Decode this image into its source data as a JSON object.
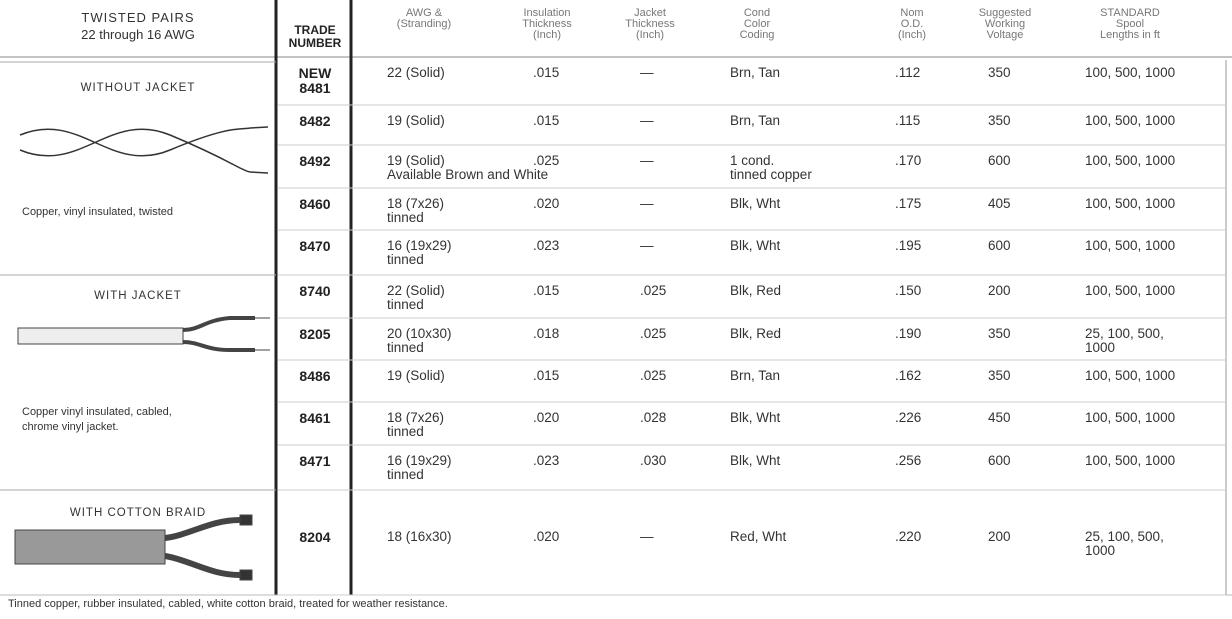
{
  "header": {
    "title": "TWISTED PAIRS",
    "subtitle": "22 through 16 AWG"
  },
  "columns": [
    "TRADE\nNUMBER",
    "AWG &\n(Stranding)",
    "Insulation\nThickness\n(Inch)",
    "Jacket\nThickness\n(Inch)",
    "Cond\nColor\nCoding",
    "Nom\nO.D.\n(Inch)",
    "Suggested\nWorking\nVoltage",
    "STANDARD\nSpool\nLengths in ft"
  ],
  "sections": [
    {
      "title": "WITHOUT JACKET",
      "caption": "Copper, vinyl insulated, twisted"
    },
    {
      "title": "WITH JACKET",
      "caption": "Copper vinyl insulated, cabled,\nchrome vinyl jacket."
    },
    {
      "title": "WITH COTTON BRAID",
      "caption": "Tinned copper, rubber insulated, cabled, white cotton braid, treated for weather resistance."
    }
  ],
  "rows": [
    [
      "NEW\n8481",
      "22 (Solid)",
      ".015",
      "—",
      "Brn, Tan",
      ".112",
      "350",
      "100, 500, 1000"
    ],
    [
      "8482",
      "19 (Solid)",
      ".015",
      "—",
      "Brn, Tan",
      ".115",
      "350",
      "100, 500, 1000"
    ],
    [
      "8492",
      "19 (Solid)\nAvailable Brown and White",
      ".025",
      "—",
      "1 cond.\ntinned copper",
      ".170",
      "600",
      "100, 500, 1000"
    ],
    [
      "8460",
      "18 (7x26)\ntinned",
      ".020",
      "—",
      "Blk, Wht",
      ".175",
      "405",
      "100, 500, 1000"
    ],
    [
      "8470",
      "16 (19x29)\ntinned",
      ".023",
      "—",
      "Blk, Wht",
      ".195",
      "600",
      "100, 500, 1000"
    ],
    [
      "8740",
      "22 (Solid)\ntinned",
      ".015",
      ".025",
      "Blk, Red",
      ".150",
      "200",
      "100, 500, 1000"
    ],
    [
      "8205",
      "20 (10x30)\ntinned",
      ".018",
      ".025",
      "Blk, Red",
      ".190",
      "350",
      "25, 100, 500,\n1000"
    ],
    [
      "8486",
      "19 (Solid)",
      ".015",
      ".025",
      "Brn, Tan",
      ".162",
      "350",
      "100, 500, 1000"
    ],
    [
      "8461",
      "18 (7x26)\ntinned",
      ".020",
      ".028",
      "Blk, Wht",
      ".226",
      "450",
      "100, 500, 1000"
    ],
    [
      "8471",
      "16 (19x29)\ntinned",
      ".023",
      ".030",
      "Blk, Wht",
      ".256",
      "600",
      "100, 500, 1000"
    ],
    [
      "8204",
      "18 (16x30)",
      ".020",
      "—",
      "Red, Wht",
      ".220",
      "200",
      "25, 100, 500,\n1000"
    ]
  ]
}
